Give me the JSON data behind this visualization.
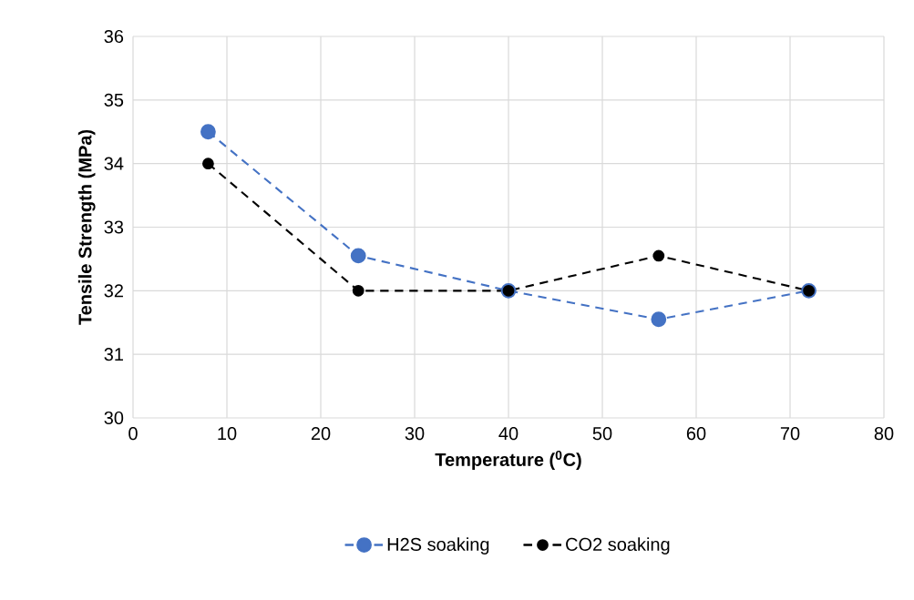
{
  "chart_data": {
    "type": "line",
    "xlabel": "Temperature ($^{0}$C)",
    "ylabel": "Tensile Strength (MPa)",
    "x": [
      8,
      24,
      40,
      56,
      72
    ],
    "series": [
      {
        "name": "H2S soaking",
        "color": "#4472c4",
        "values": [
          34.5,
          32.55,
          32.0,
          31.55,
          32.0
        ]
      },
      {
        "name": "CO2 soaking",
        "color": "#000000",
        "values": [
          34.0,
          32.0,
          32.0,
          32.55,
          32.0
        ]
      }
    ],
    "xlim": [
      0,
      80
    ],
    "ylim": [
      30,
      36
    ],
    "xticks": [
      0,
      10,
      20,
      30,
      40,
      50,
      60,
      70,
      80
    ],
    "yticks": [
      30,
      31,
      32,
      33,
      34,
      35,
      36
    ],
    "grid": true,
    "legend": "bottom",
    "marker": "circle",
    "line_style": "dashed"
  }
}
